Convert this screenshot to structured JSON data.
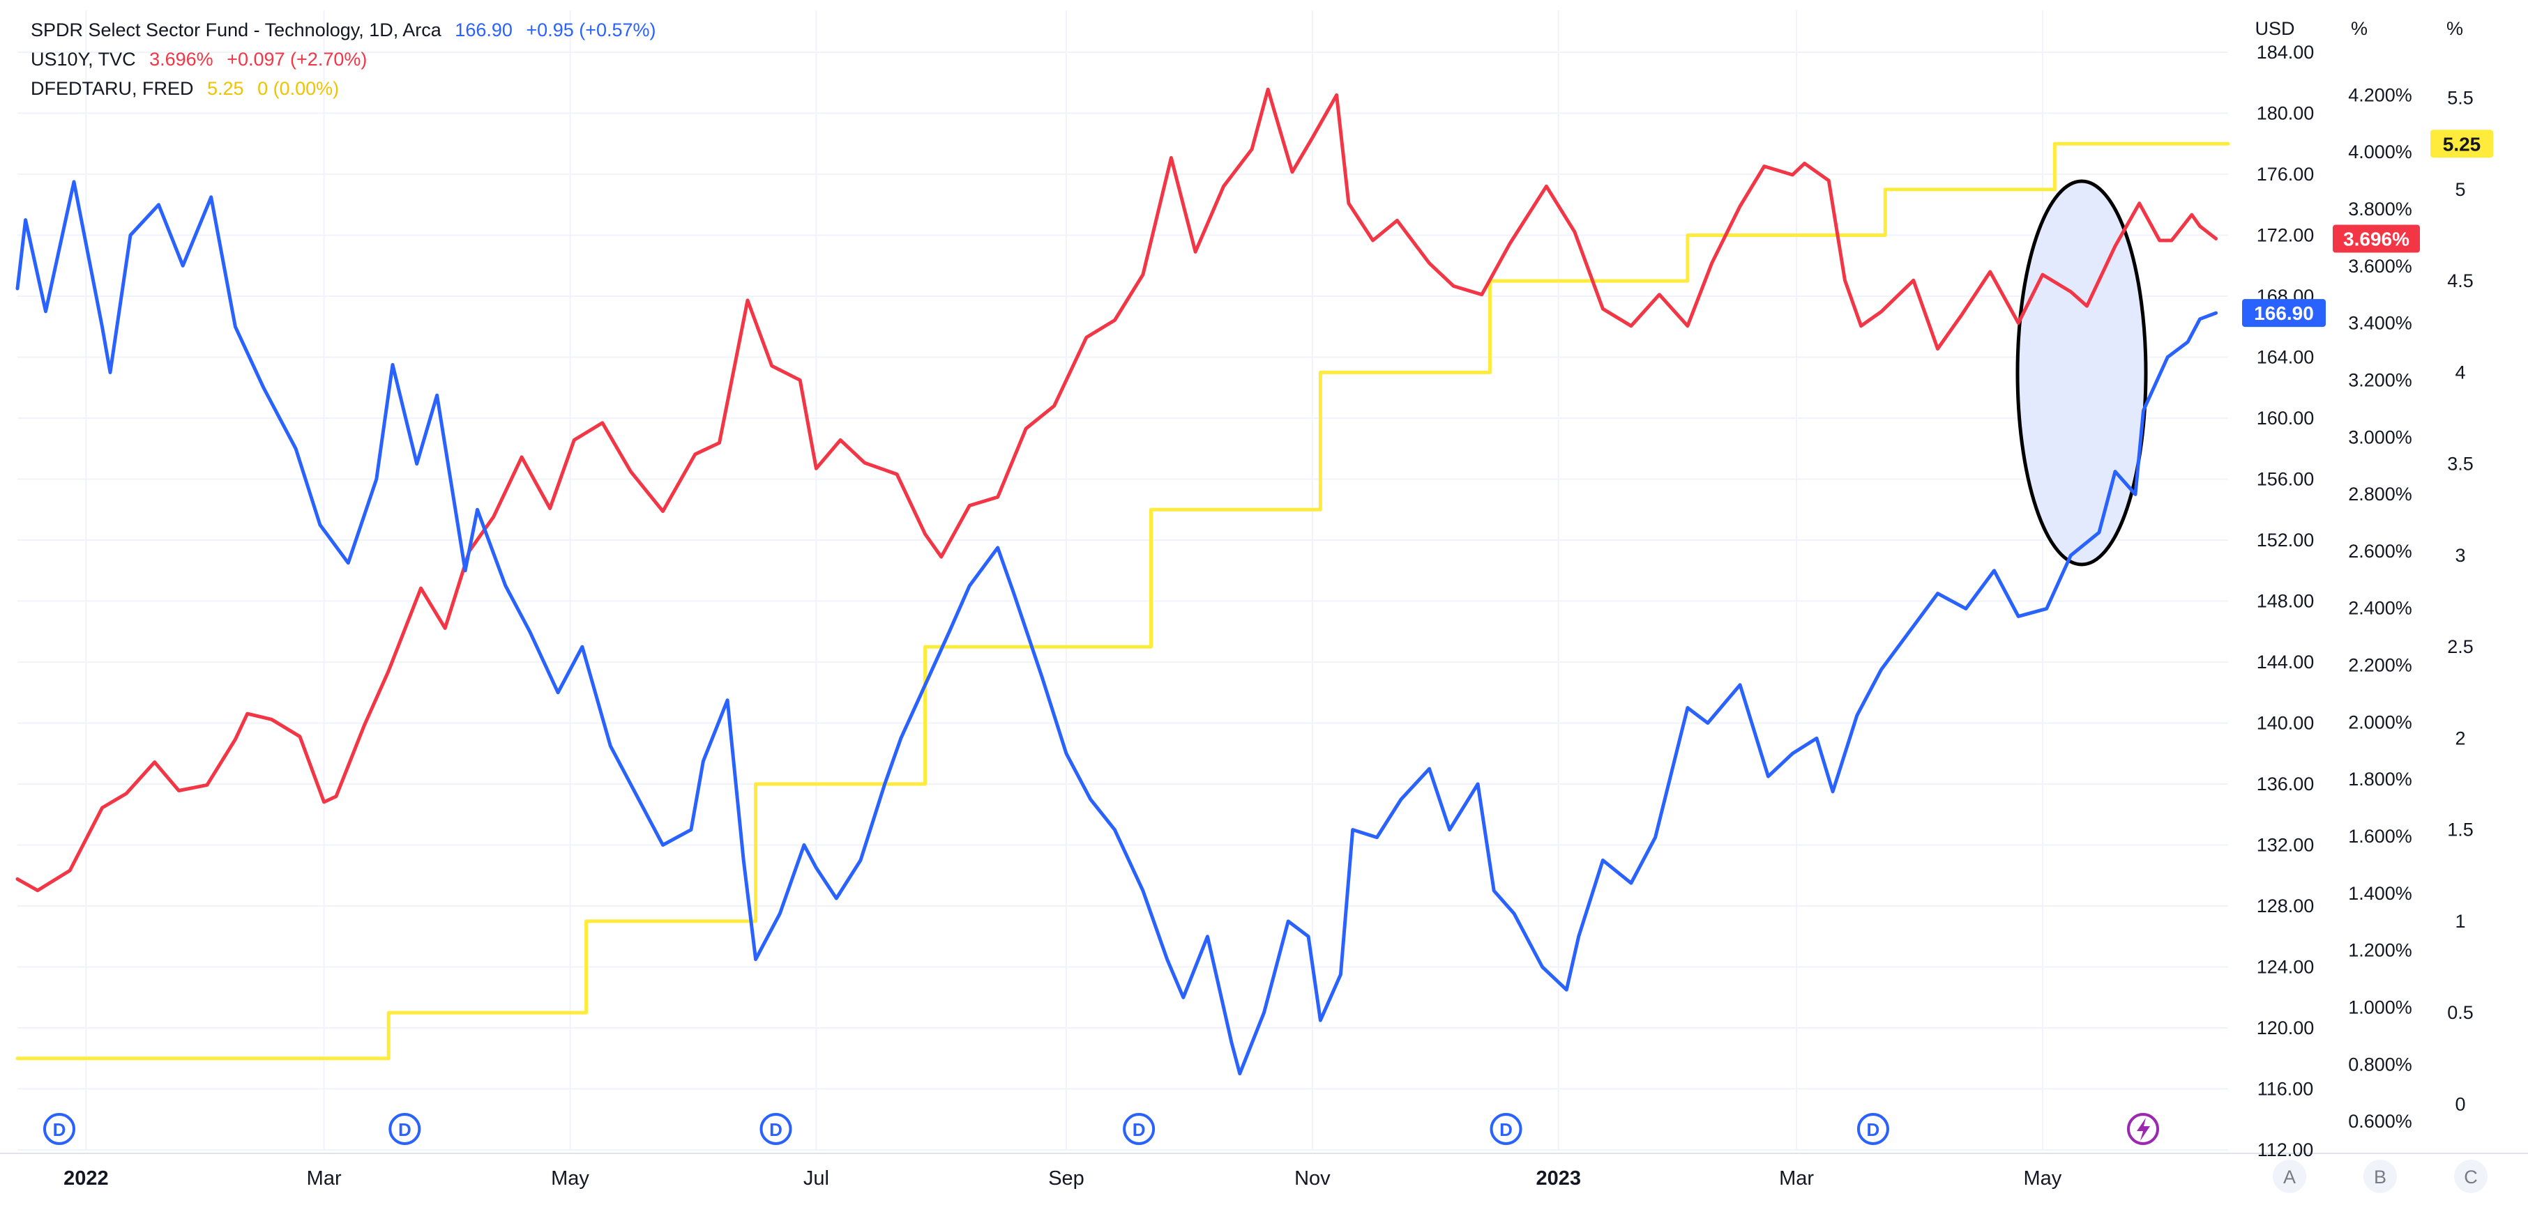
{
  "legend": {
    "xlk": {
      "name": "SPDR Select Sector Fund - Technology, 1D, Arca",
      "value": "166.90",
      "change": "+0.95 (+0.57%)"
    },
    "us10y": {
      "name": "US10Y, TVC",
      "value": "3.696%",
      "change": "+0.097 (+2.70%)"
    },
    "dfedtaru": {
      "name": "DFEDTARU, FRED",
      "value": "5.25",
      "change": "0 (0.00%)"
    }
  },
  "axes": {
    "usd_header": "USD",
    "pct_header": "%",
    "pct2_header": "%",
    "usd_ticks": [
      "184.00",
      "180.00",
      "176.00",
      "172.00",
      "168.00",
      "164.00",
      "160.00",
      "156.00",
      "152.00",
      "148.00",
      "144.00",
      "140.00",
      "136.00",
      "132.00",
      "128.00",
      "124.00",
      "120.00",
      "116.00",
      "112.00"
    ],
    "pct_ticks": [
      "4.200%",
      "4.000%",
      "3.800%",
      "3.600%",
      "3.400%",
      "3.200%",
      "3.000%",
      "2.800%",
      "2.600%",
      "2.400%",
      "2.200%",
      "2.000%",
      "1.800%",
      "1.600%",
      "1.400%",
      "1.200%",
      "1.000%",
      "0.800%",
      "0.600%"
    ],
    "pct2_ticks": [
      "5.5",
      "5",
      "4.5",
      "4",
      "3.5",
      "3",
      "2.5",
      "2",
      "1.5",
      "1",
      "0.5",
      "0"
    ],
    "time_ticks": [
      "2022",
      "Mar",
      "May",
      "Jul",
      "Sep",
      "Nov",
      "2023",
      "Mar",
      "May"
    ],
    "scale_buttons": [
      "A",
      "B",
      "C"
    ]
  },
  "markers": {
    "dividend_label": "D",
    "dividend_dates": [
      "2021-12-20",
      "2022-03-21",
      "2022-06-21",
      "2022-09-19",
      "2022-12-19",
      "2023-03-20"
    ],
    "event_icon": "lightning-icon"
  },
  "badges": {
    "xlk": "166.90",
    "us10y": "3.696%",
    "dfedtaru": "5.25"
  },
  "colors": {
    "xlk": "#2962ff",
    "us10y": "#f23645",
    "dfedtaru": "#ffeb3b",
    "grid": "#f0f3fa",
    "axis_text": "#131722",
    "dividend": "#2962ff",
    "event": "#9c27b0",
    "highlight_fill": "#e3eafd",
    "highlight_stroke": "#000000"
  },
  "chart_data": {
    "type": "line",
    "x_range": [
      "2021-12-15",
      "2023-06-16"
    ],
    "series": [
      {
        "name": "SPDR Select Sector Fund - Technology, 1D, Arca",
        "axis": "USD",
        "ylim": [
          112,
          184
        ],
        "points": [
          [
            "2021-12-15",
            168.5
          ],
          [
            "2021-12-17",
            173.0
          ],
          [
            "2021-12-22",
            167.0
          ],
          [
            "2021-12-29",
            175.5
          ],
          [
            "2022-01-05",
            166.0
          ],
          [
            "2022-01-07",
            163.0
          ],
          [
            "2022-01-12",
            172.0
          ],
          [
            "2022-01-19",
            174.0
          ],
          [
            "2022-01-25",
            170.0
          ],
          [
            "2022-02-01",
            174.5
          ],
          [
            "2022-02-07",
            166.0
          ],
          [
            "2022-02-14",
            162.0
          ],
          [
            "2022-02-22",
            158.0
          ],
          [
            "2022-02-28",
            153.0
          ],
          [
            "2022-03-07",
            150.5
          ],
          [
            "2022-03-14",
            156.0
          ],
          [
            "2022-03-18",
            163.5
          ],
          [
            "2022-03-24",
            157.0
          ],
          [
            "2022-03-29",
            161.5
          ],
          [
            "2022-04-05",
            150.0
          ],
          [
            "2022-04-08",
            154.0
          ],
          [
            "2022-04-15",
            149.0
          ],
          [
            "2022-04-21",
            146.0
          ],
          [
            "2022-04-28",
            142.0
          ],
          [
            "2022-05-04",
            145.0
          ],
          [
            "2022-05-11",
            138.5
          ],
          [
            "2022-05-18",
            135.0
          ],
          [
            "2022-05-24",
            132.0
          ],
          [
            "2022-05-31",
            133.0
          ],
          [
            "2022-06-03",
            137.5
          ],
          [
            "2022-06-09",
            141.5
          ],
          [
            "2022-06-13",
            131.0
          ],
          [
            "2022-06-16",
            124.5
          ],
          [
            "2022-06-22",
            127.5
          ],
          [
            "2022-06-28",
            132.0
          ],
          [
            "2022-07-01",
            130.5
          ],
          [
            "2022-07-06",
            128.5
          ],
          [
            "2022-07-12",
            131.0
          ],
          [
            "2022-07-18",
            136.0
          ],
          [
            "2022-07-22",
            139.0
          ],
          [
            "2022-07-28",
            142.5
          ],
          [
            "2022-08-03",
            146.0
          ],
          [
            "2022-08-08",
            149.0
          ],
          [
            "2022-08-15",
            151.5
          ],
          [
            "2022-08-19",
            148.5
          ],
          [
            "2022-08-26",
            143.0
          ],
          [
            "2022-09-01",
            138.0
          ],
          [
            "2022-09-07",
            135.0
          ],
          [
            "2022-09-13",
            133.0
          ],
          [
            "2022-09-20",
            129.0
          ],
          [
            "2022-09-26",
            124.5
          ],
          [
            "2022-09-30",
            122.0
          ],
          [
            "2022-10-06",
            126.0
          ],
          [
            "2022-10-12",
            119.0
          ],
          [
            "2022-10-14",
            117.0
          ],
          [
            "2022-10-20",
            121.0
          ],
          [
            "2022-10-26",
            127.0
          ],
          [
            "2022-10-31",
            126.0
          ],
          [
            "2022-11-03",
            120.5
          ],
          [
            "2022-11-08",
            123.5
          ],
          [
            "2022-11-11",
            133.0
          ],
          [
            "2022-11-17",
            132.5
          ],
          [
            "2022-11-23",
            135.0
          ],
          [
            "2022-11-30",
            137.0
          ],
          [
            "2022-12-05",
            133.0
          ],
          [
            "2022-12-12",
            136.0
          ],
          [
            "2022-12-16",
            129.0
          ],
          [
            "2022-12-21",
            127.5
          ],
          [
            "2022-12-28",
            124.0
          ],
          [
            "2023-01-03",
            122.5
          ],
          [
            "2023-01-06",
            126.0
          ],
          [
            "2023-01-12",
            131.0
          ],
          [
            "2023-01-19",
            129.5
          ],
          [
            "2023-01-25",
            132.5
          ],
          [
            "2023-02-02",
            141.0
          ],
          [
            "2023-02-07",
            140.0
          ],
          [
            "2023-02-15",
            142.5
          ],
          [
            "2023-02-22",
            136.5
          ],
          [
            "2023-02-28",
            138.0
          ],
          [
            "2023-03-06",
            139.0
          ],
          [
            "2023-03-10",
            135.5
          ],
          [
            "2023-03-16",
            140.5
          ],
          [
            "2023-03-22",
            143.5
          ],
          [
            "2023-03-29",
            146.0
          ],
          [
            "2023-04-05",
            148.5
          ],
          [
            "2023-04-12",
            147.5
          ],
          [
            "2023-04-19",
            150.0
          ],
          [
            "2023-04-25",
            147.0
          ],
          [
            "2023-05-02",
            147.5
          ],
          [
            "2023-05-08",
            151.0
          ],
          [
            "2023-05-15",
            152.5
          ],
          [
            "2023-05-19",
            156.5
          ],
          [
            "2023-05-24",
            155.0
          ],
          [
            "2023-05-26",
            160.5
          ],
          [
            "2023-06-01",
            164.0
          ],
          [
            "2023-06-06",
            165.0
          ],
          [
            "2023-06-09",
            166.5
          ],
          [
            "2023-06-13",
            166.9
          ]
        ]
      },
      {
        "name": "US10Y, TVC",
        "axis": "%",
        "ylim": [
          0.5,
          4.35
        ],
        "points": [
          [
            "2021-12-15",
            1.45
          ],
          [
            "2021-12-20",
            1.41
          ],
          [
            "2021-12-28",
            1.48
          ],
          [
            "2022-01-05",
            1.7
          ],
          [
            "2022-01-11",
            1.75
          ],
          [
            "2022-01-18",
            1.86
          ],
          [
            "2022-01-24",
            1.76
          ],
          [
            "2022-01-31",
            1.78
          ],
          [
            "2022-02-07",
            1.94
          ],
          [
            "2022-02-10",
            2.03
          ],
          [
            "2022-02-16",
            2.01
          ],
          [
            "2022-02-23",
            1.95
          ],
          [
            "2022-03-01",
            1.72
          ],
          [
            "2022-03-04",
            1.74
          ],
          [
            "2022-03-11",
            1.99
          ],
          [
            "2022-03-17",
            2.18
          ],
          [
            "2022-03-25",
            2.47
          ],
          [
            "2022-03-31",
            2.33
          ],
          [
            "2022-04-06",
            2.6
          ],
          [
            "2022-04-12",
            2.72
          ],
          [
            "2022-04-19",
            2.93
          ],
          [
            "2022-04-26",
            2.75
          ],
          [
            "2022-05-02",
            2.99
          ],
          [
            "2022-05-09",
            3.05
          ],
          [
            "2022-05-16",
            2.88
          ],
          [
            "2022-05-24",
            2.74
          ],
          [
            "2022-06-01",
            2.94
          ],
          [
            "2022-06-07",
            2.98
          ],
          [
            "2022-06-14",
            3.48
          ],
          [
            "2022-06-20",
            3.25
          ],
          [
            "2022-06-27",
            3.2
          ],
          [
            "2022-07-01",
            2.89
          ],
          [
            "2022-07-07",
            2.99
          ],
          [
            "2022-07-13",
            2.91
          ],
          [
            "2022-07-21",
            2.87
          ],
          [
            "2022-07-28",
            2.66
          ],
          [
            "2022-08-01",
            2.58
          ],
          [
            "2022-08-08",
            2.76
          ],
          [
            "2022-08-15",
            2.79
          ],
          [
            "2022-08-22",
            3.03
          ],
          [
            "2022-08-29",
            3.11
          ],
          [
            "2022-09-06",
            3.35
          ],
          [
            "2022-09-13",
            3.41
          ],
          [
            "2022-09-20",
            3.57
          ],
          [
            "2022-09-27",
            3.98
          ],
          [
            "2022-10-03",
            3.65
          ],
          [
            "2022-10-10",
            3.88
          ],
          [
            "2022-10-17",
            4.01
          ],
          [
            "2022-10-21",
            4.22
          ],
          [
            "2022-10-27",
            3.93
          ],
          [
            "2022-11-01",
            4.05
          ],
          [
            "2022-11-07",
            4.2
          ],
          [
            "2022-11-10",
            3.82
          ],
          [
            "2022-11-16",
            3.69
          ],
          [
            "2022-11-22",
            3.76
          ],
          [
            "2022-11-30",
            3.61
          ],
          [
            "2022-12-06",
            3.53
          ],
          [
            "2022-12-13",
            3.5
          ],
          [
            "2022-12-20",
            3.68
          ],
          [
            "2022-12-29",
            3.88
          ],
          [
            "2023-01-05",
            3.72
          ],
          [
            "2023-01-12",
            3.45
          ],
          [
            "2023-01-19",
            3.39
          ],
          [
            "2023-01-26",
            3.5
          ],
          [
            "2023-02-02",
            3.39
          ],
          [
            "2023-02-08",
            3.61
          ],
          [
            "2023-02-15",
            3.81
          ],
          [
            "2023-02-21",
            3.95
          ],
          [
            "2023-02-28",
            3.92
          ],
          [
            "2023-03-03",
            3.96
          ],
          [
            "2023-03-09",
            3.9
          ],
          [
            "2023-03-13",
            3.55
          ],
          [
            "2023-03-17",
            3.39
          ],
          [
            "2023-03-22",
            3.44
          ],
          [
            "2023-03-30",
            3.55
          ],
          [
            "2023-04-05",
            3.31
          ],
          [
            "2023-04-11",
            3.43
          ],
          [
            "2023-04-18",
            3.58
          ],
          [
            "2023-04-25",
            3.4
          ],
          [
            "2023-05-01",
            3.57
          ],
          [
            "2023-05-08",
            3.51
          ],
          [
            "2023-05-12",
            3.46
          ],
          [
            "2023-05-19",
            3.67
          ],
          [
            "2023-05-25",
            3.82
          ],
          [
            "2023-05-30",
            3.69
          ],
          [
            "2023-06-02",
            3.69
          ],
          [
            "2023-06-07",
            3.78
          ],
          [
            "2023-06-09",
            3.74
          ],
          [
            "2023-06-13",
            3.696
          ]
        ]
      },
      {
        "name": "DFEDTARU, FRED",
        "axis": "%",
        "ylim": [
          -0.25,
          5.75
        ],
        "step": true,
        "points": [
          [
            "2021-12-15",
            0.25
          ],
          [
            "2022-03-17",
            0.5
          ],
          [
            "2022-05-05",
            1.0
          ],
          [
            "2022-06-16",
            1.75
          ],
          [
            "2022-07-28",
            2.5
          ],
          [
            "2022-09-22",
            3.25
          ],
          [
            "2022-11-03",
            4.0
          ],
          [
            "2022-12-15",
            4.5
          ],
          [
            "2023-02-02",
            4.75
          ],
          [
            "2023-03-23",
            5.0
          ],
          [
            "2023-05-04",
            5.25
          ],
          [
            "2023-06-16",
            5.25
          ]
        ]
      }
    ]
  }
}
